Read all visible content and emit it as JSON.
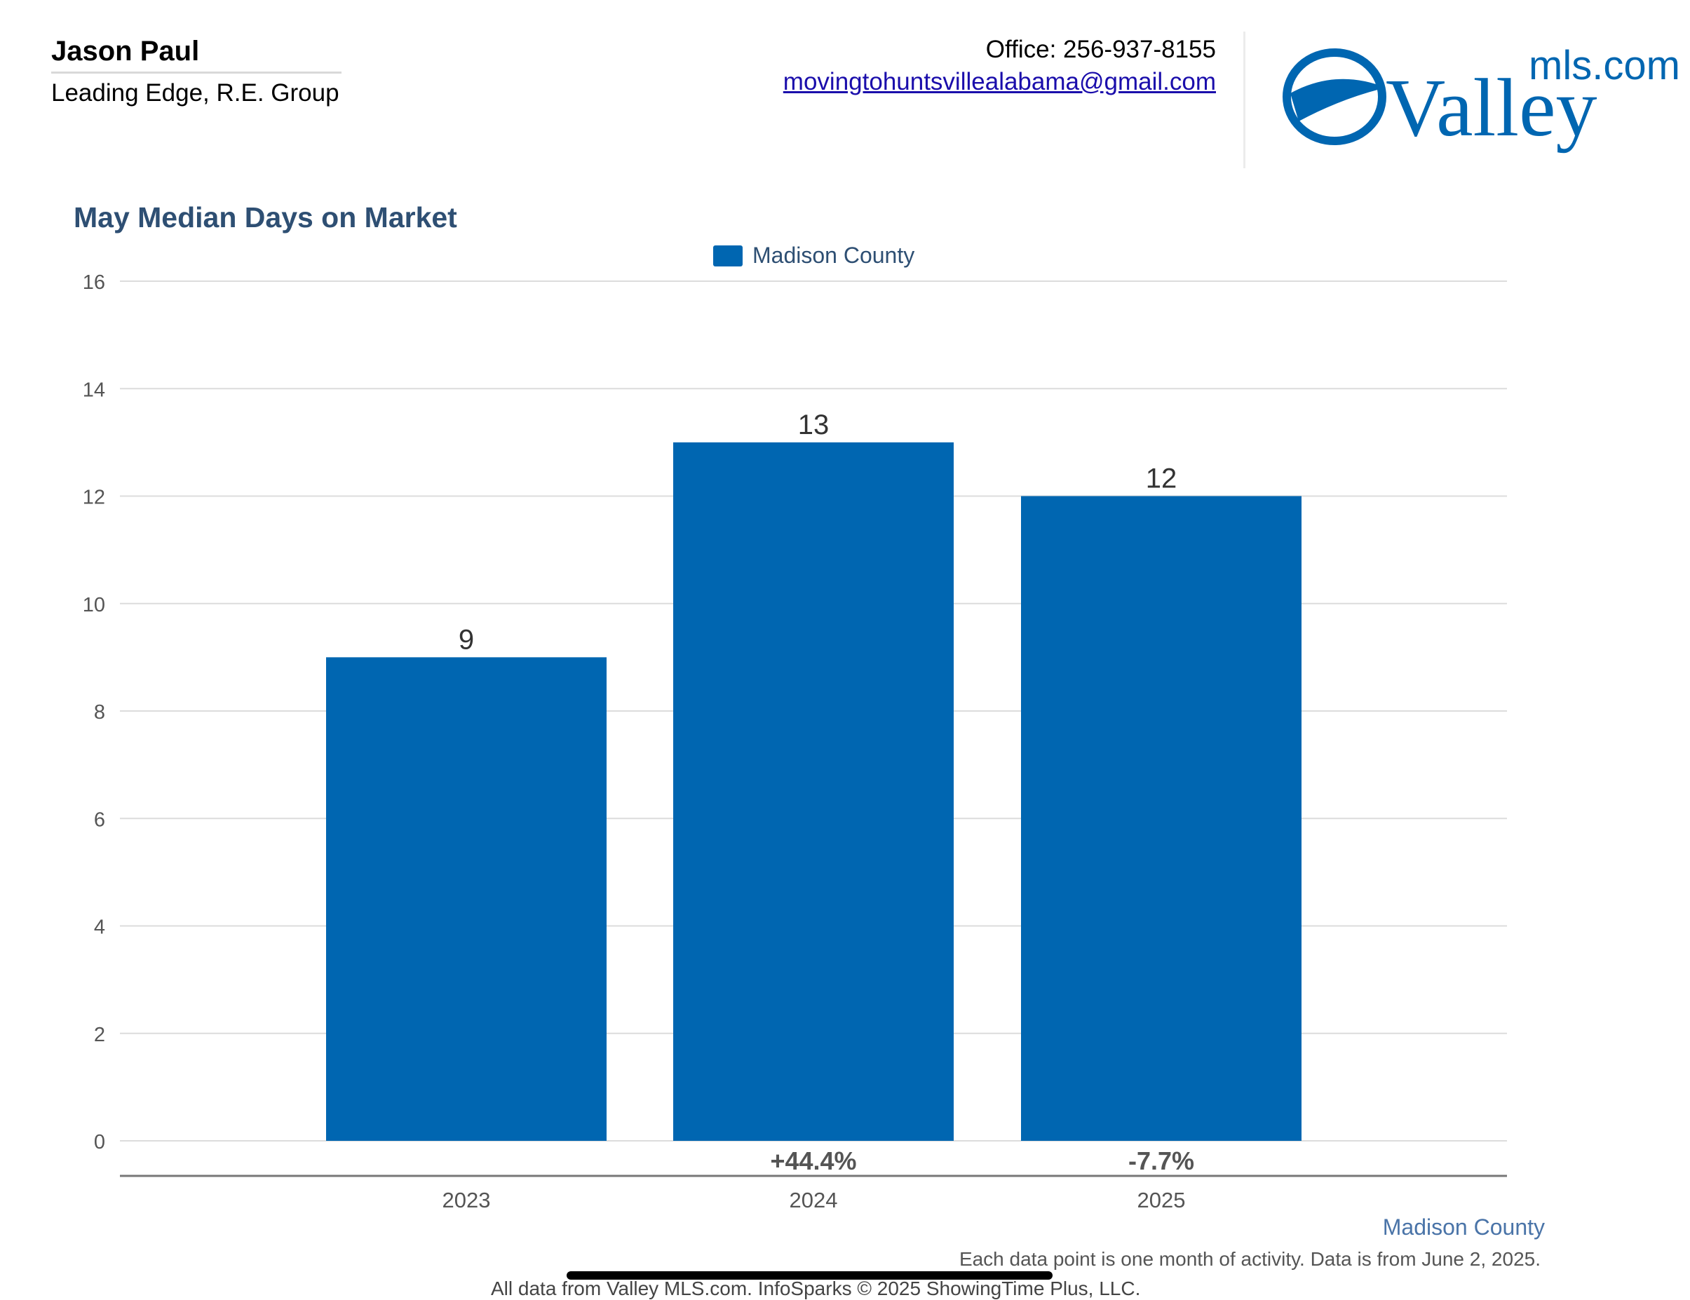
{
  "header": {
    "agent_name": "Jason Paul",
    "company": "Leading Edge, R.E. Group",
    "office_phone": "Office: 256-937-8155",
    "email": "movingtohuntsvillealabama@gmail.com",
    "logo": {
      "top_text": "mls.com",
      "main_text": "Valley",
      "icon": "valley-swoosh-icon"
    }
  },
  "colors": {
    "bar": "#0066b1",
    "title": "#2e4f73",
    "link": "#1a0dab"
  },
  "chart_data": {
    "type": "bar",
    "title": "May Median Days on Market",
    "categories": [
      "2023",
      "2024",
      "2025"
    ],
    "series": [
      {
        "name": "Madison County",
        "values": [
          9,
          13,
          12
        ]
      }
    ],
    "value_labels": [
      "9",
      "13",
      "12"
    ],
    "change_labels": [
      "",
      "+44.4%",
      "-7.7%"
    ],
    "ylim": [
      0,
      16
    ],
    "yticks": [
      "0",
      "2",
      "4",
      "6",
      "8",
      "10",
      "12",
      "14",
      "16"
    ],
    "grid": true,
    "legend": "top-center"
  },
  "footer": {
    "area_name": "Madison County",
    "note": "Each data point is one month of activity. Data is from June 2, 2025.",
    "source": "All data from Valley MLS.com. InfoSparks © 2025 ShowingTime Plus, LLC."
  }
}
